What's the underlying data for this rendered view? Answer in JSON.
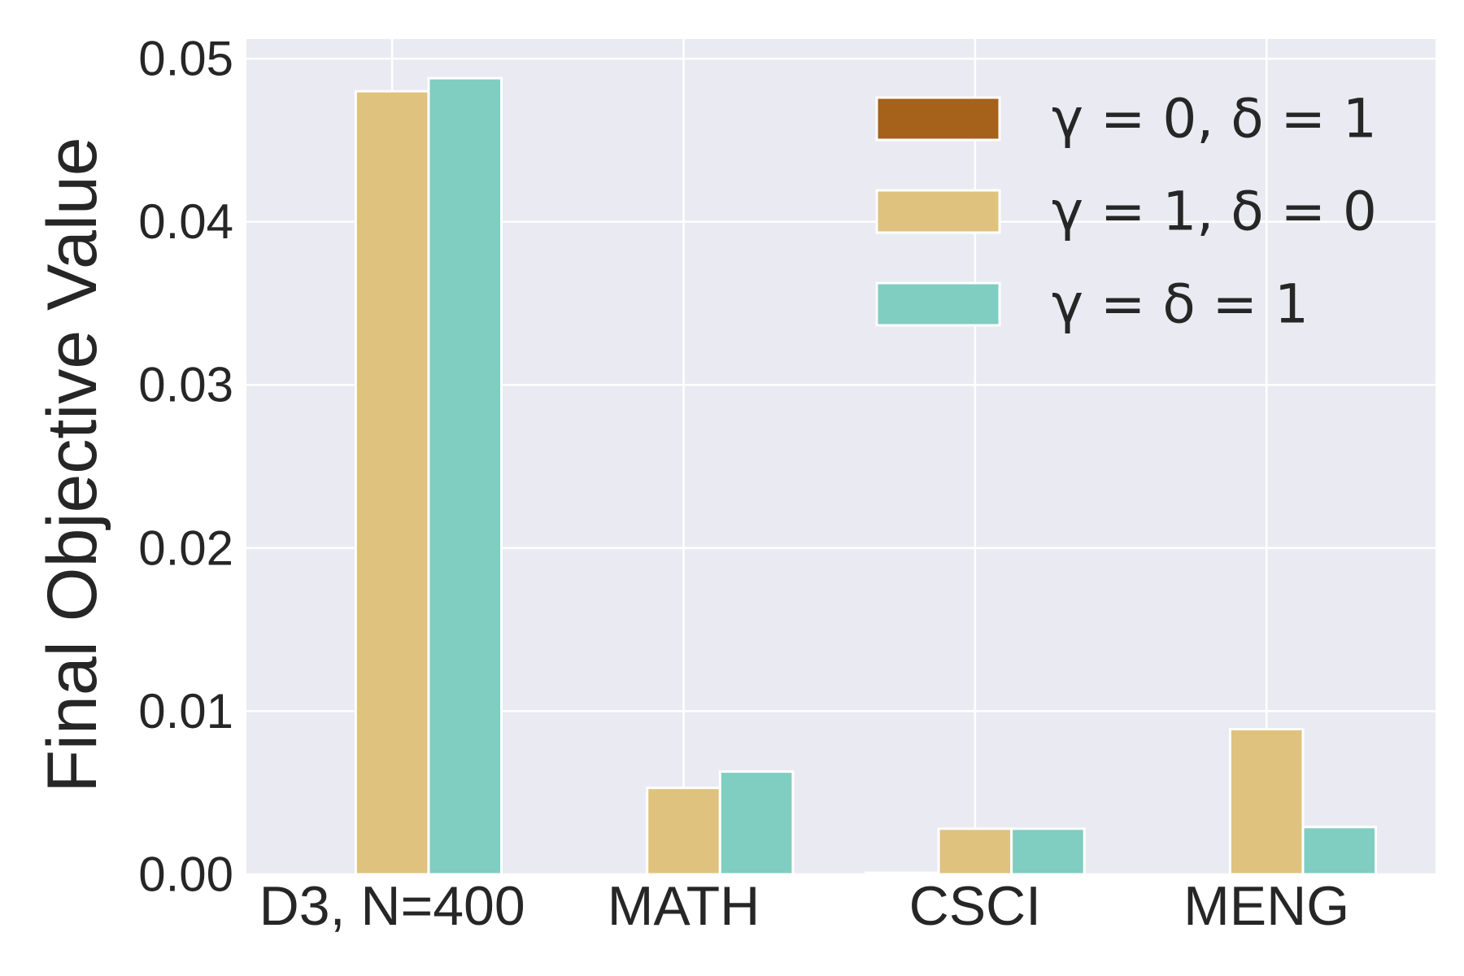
{
  "chart_data": {
    "type": "bar",
    "title": "",
    "xlabel": "",
    "ylabel": "Final Objective Value",
    "categories": [
      "D3, N=400",
      "MATH",
      "CSCI",
      "MENG"
    ],
    "ylim": [
      0,
      0.0512
    ],
    "yticks": [
      0.0,
      0.01,
      0.02,
      0.03,
      0.04,
      0.05
    ],
    "ytick_labels": [
      "0.00",
      "0.01",
      "0.02",
      "0.03",
      "0.04",
      "0.05"
    ],
    "grid": true,
    "legend_position": "top-right",
    "series": [
      {
        "name": "γ = 0, δ = 1",
        "color": "#a6611a",
        "values": [
          0.0,
          0.0,
          0.0001,
          0.0
        ]
      },
      {
        "name": "γ = 1, δ = 0",
        "color": "#dfc27d",
        "values": [
          0.048,
          0.0053,
          0.0028,
          0.0089
        ]
      },
      {
        "name": "γ = δ = 1",
        "color": "#80cdc1",
        "values": [
          0.0488,
          0.0063,
          0.0028,
          0.0029
        ]
      }
    ],
    "colors": {
      "plot_background": "#eaeaf2",
      "grid": "#ffffff",
      "text": "#262626"
    }
  }
}
